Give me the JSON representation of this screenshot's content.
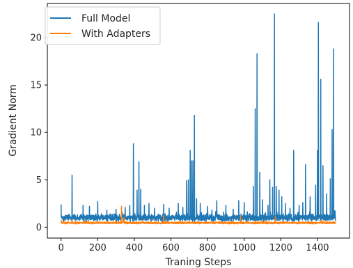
{
  "chart_data": {
    "type": "line",
    "title": "",
    "xlabel": "Traning Steps",
    "ylabel": "Gradient Norm",
    "xlim": [
      -75,
      1575
    ],
    "ylim": [
      -1.15,
      23.6
    ],
    "xticks": [
      0,
      200,
      400,
      600,
      800,
      1000,
      1200,
      1400
    ],
    "yticks": [
      0,
      5,
      10,
      15,
      20
    ],
    "grid": false,
    "legend_position": "top-left",
    "series": [
      {
        "name": "Full Model",
        "color": "#1f77b4",
        "baseline": 1.0,
        "noise": 0.45,
        "spikes": [
          [
            0,
            2.4
          ],
          [
            60,
            5.5
          ],
          [
            120,
            2.3
          ],
          [
            155,
            2.2
          ],
          [
            200,
            2.7
          ],
          [
            250,
            1.8
          ],
          [
            300,
            1.9
          ],
          [
            350,
            2.1
          ],
          [
            375,
            2.3
          ],
          [
            395,
            8.8
          ],
          [
            415,
            3.9
          ],
          [
            425,
            6.9
          ],
          [
            435,
            4.0
          ],
          [
            455,
            2.3
          ],
          [
            480,
            2.5
          ],
          [
            510,
            2.0
          ],
          [
            560,
            2.4
          ],
          [
            590,
            2.0
          ],
          [
            640,
            2.5
          ],
          [
            665,
            2.1
          ],
          [
            685,
            4.9
          ],
          [
            695,
            5.0
          ],
          [
            705,
            8.1
          ],
          [
            713,
            7.0
          ],
          [
            720,
            7.0
          ],
          [
            728,
            11.8
          ],
          [
            740,
            3.0
          ],
          [
            760,
            2.5
          ],
          [
            800,
            2.2
          ],
          [
            850,
            2.8
          ],
          [
            900,
            2.3
          ],
          [
            940,
            1.9
          ],
          [
            970,
            2.8
          ],
          [
            1000,
            2.6
          ],
          [
            1050,
            4.3
          ],
          [
            1060,
            12.5
          ],
          [
            1070,
            18.3
          ],
          [
            1085,
            5.8
          ],
          [
            1100,
            2.9
          ],
          [
            1130,
            2.3
          ],
          [
            1140,
            5.0
          ],
          [
            1155,
            4.2
          ],
          [
            1165,
            22.5
          ],
          [
            1175,
            4.3
          ],
          [
            1190,
            3.9
          ],
          [
            1205,
            3.2
          ],
          [
            1225,
            2.5
          ],
          [
            1250,
            2.0
          ],
          [
            1270,
            8.1
          ],
          [
            1300,
            2.3
          ],
          [
            1320,
            2.6
          ],
          [
            1335,
            6.6
          ],
          [
            1360,
            3.2
          ],
          [
            1390,
            4.4
          ],
          [
            1400,
            8.1
          ],
          [
            1405,
            21.6
          ],
          [
            1418,
            15.6
          ],
          [
            1430,
            6.5
          ],
          [
            1450,
            3.5
          ],
          [
            1470,
            5.1
          ],
          [
            1480,
            10.3
          ],
          [
            1488,
            18.8
          ]
        ]
      },
      {
        "name": "With Adapters",
        "color": "#ff7f0e",
        "baseline": 0.45,
        "noise": 0.12,
        "spikes": [
          [
            0,
            0.8
          ],
          [
            60,
            0.8
          ],
          [
            330,
            2.2
          ],
          [
            345,
            1.0
          ],
          [
            560,
            1.2
          ],
          [
            980,
            1.2
          ],
          [
            1170,
            1.1
          ],
          [
            1450,
            0.7
          ]
        ]
      }
    ],
    "num_steps": 1500
  }
}
